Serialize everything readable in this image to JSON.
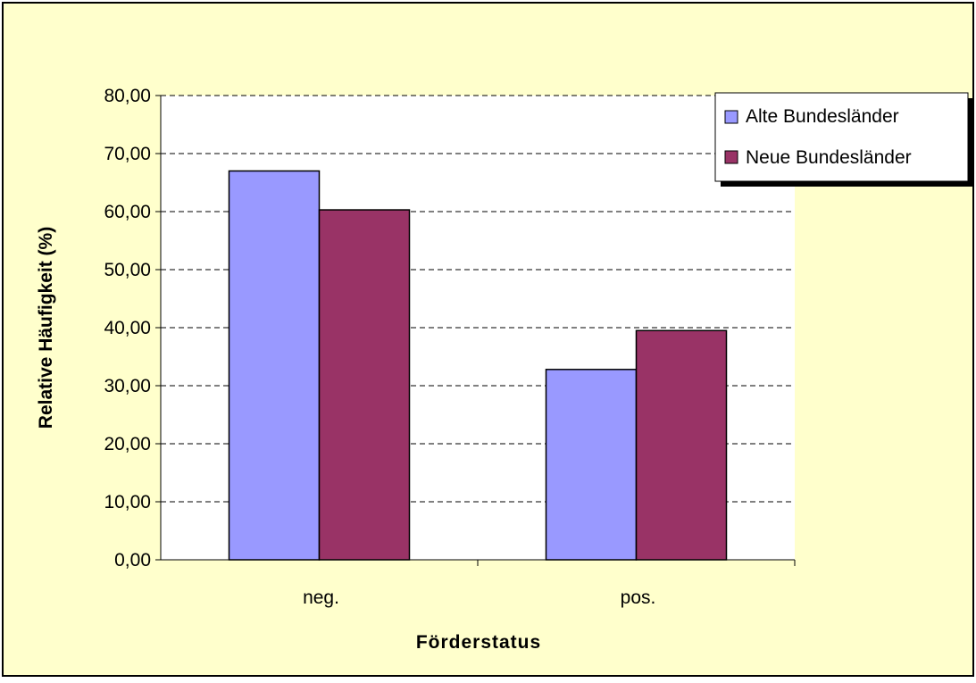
{
  "colors": {
    "chart_area": "#FFFFCC",
    "plot_area": "#FFFFFF",
    "gridline": "#000000",
    "series_alte": "#9999FF",
    "series_neue": "#993366",
    "border": "#000000"
  },
  "chart_data": {
    "type": "bar",
    "title": "",
    "xlabel": "Förderstatus",
    "ylabel": "Relative Häufigkeit (%)",
    "categories": [
      "neg.",
      "pos."
    ],
    "series": [
      {
        "name": "Alte Bundesländer",
        "values": [
          67.0,
          32.8
        ]
      },
      {
        "name": "Neue Bundesländer",
        "values": [
          60.3,
          39.5
        ]
      }
    ],
    "ylim": [
      0,
      80
    ],
    "yticks": [
      0,
      10,
      20,
      30,
      40,
      50,
      60,
      70,
      80
    ],
    "ytick_labels": [
      "0,00",
      "10,00",
      "20,00",
      "30,00",
      "40,00",
      "50,00",
      "60,00",
      "70,00",
      "80,00"
    ],
    "grid": true,
    "grid_style": "dashed",
    "legend_position": "top-right"
  }
}
